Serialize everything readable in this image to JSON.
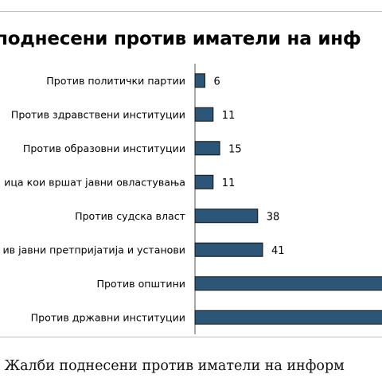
{
  "title": "поднесени против иматели на инф",
  "caption": ": Жалби поднесени против иматели на информ",
  "colors": {
    "bar_fill": "#2b5677",
    "bar_stroke": "#111111",
    "axis": "#555555"
  },
  "chart_data": {
    "type": "bar",
    "orientation": "horizontal",
    "title": "поднесени против иматели на инф",
    "categories": [
      "Против политички партии",
      "Против здравствени институции",
      "Против образовни институции",
      "ица кои вршат јавни овластувања",
      "Против судска власт",
      "ив јавни претпријатија и установи",
      "Против општини",
      "Против државни институции"
    ],
    "values": [
      6,
      11,
      15,
      11,
      38,
      41,
      null,
      null
    ],
    "value_labels": [
      "6",
      "11",
      "15",
      "11",
      "38",
      "41",
      "",
      ""
    ],
    "xlim": [
      0,
      41
    ],
    "grid": false,
    "legend": "none"
  }
}
